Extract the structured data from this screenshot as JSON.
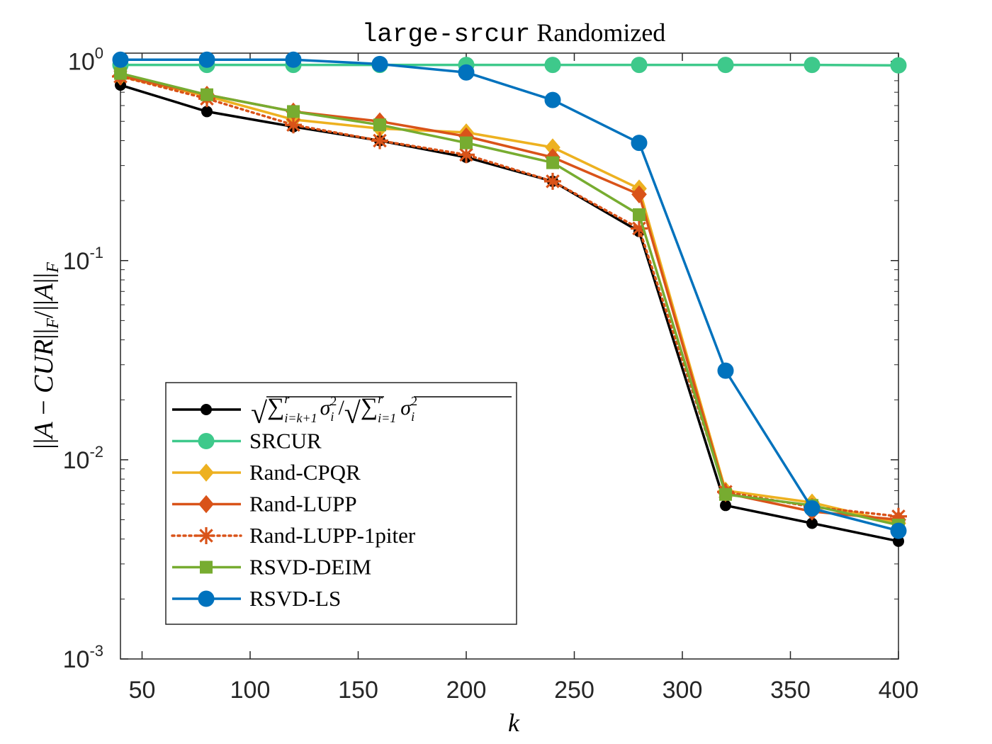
{
  "chart_data": {
    "type": "line",
    "title_code": "large-srcur",
    "title_text": " Randomized",
    "xlabel": "k",
    "ylabel": "||A − CUR||_F / ||A||_F",
    "ylabel_parts": {
      "bar1": "||",
      "A": "A",
      "minus": " − ",
      "CUR": "CUR",
      "bar2": "||",
      "sub1": "F",
      "slash": "/",
      "bar3": "||",
      "A2": "A",
      "bar4": "||",
      "sub2": "F"
    },
    "yscale": "log",
    "xlim": [
      40,
      400
    ],
    "ylim": [
      0.001,
      1.1
    ],
    "x_ticks": [
      50,
      100,
      150,
      200,
      250,
      300,
      350,
      400
    ],
    "x_tick_labels": [
      "50",
      "100",
      "150",
      "200",
      "250",
      "300",
      "350",
      "400"
    ],
    "y_ticks": [
      {
        "value": 1,
        "base": "10",
        "exp": "0"
      },
      {
        "value": 0.1,
        "base": "10",
        "exp": "-1"
      },
      {
        "value": 0.01,
        "base": "10",
        "exp": "-2"
      },
      {
        "value": 0.001,
        "base": "10",
        "exp": "-3"
      }
    ],
    "grid": false,
    "legend_position": "lower-left",
    "legend_first_label": {
      "sqrt": "√",
      "sum": "∑",
      "sup_r1": "r",
      "sub_1": "i=k+1",
      "sigma1": "σ",
      "sup_2a": "2",
      "sub_i1": "i",
      "slash": "/",
      "sup_r2": "r",
      "sub_2": "i=1",
      "sigma2": "σ",
      "sup_2b": "2",
      "sub_i2": "i"
    },
    "x": [
      40,
      80,
      120,
      160,
      200,
      240,
      280,
      320,
      360,
      400
    ],
    "series": [
      {
        "name": "SRCUR",
        "color": "#3ec98b",
        "marker": "circle",
        "dash": "solid",
        "values": [
          0.96,
          0.96,
          0.96,
          0.96,
          0.96,
          0.96,
          0.96,
          0.96,
          0.96,
          0.955
        ]
      },
      {
        "name": "Rand-CPQR",
        "color": "#edb120",
        "marker": "diamond",
        "dash": "solid",
        "values": [
          0.84,
          0.67,
          0.51,
          0.46,
          0.44,
          0.37,
          0.23,
          0.007,
          0.0061,
          0.0048
        ]
      },
      {
        "name": "Rand-LUPP",
        "color": "#d95319",
        "marker": "diamond",
        "dash": "solid",
        "values": [
          0.85,
          0.68,
          0.56,
          0.5,
          0.42,
          0.33,
          0.215,
          0.0068,
          0.0055,
          0.005
        ]
      },
      {
        "name": "Rand-LUPP-1piter",
        "color": "#d95319",
        "marker": "asterisk",
        "dash": "dotted",
        "values": [
          0.84,
          0.65,
          0.48,
          0.4,
          0.34,
          0.25,
          0.145,
          0.0069,
          0.0058,
          0.0052
        ]
      },
      {
        "name": "RSVD-DEIM",
        "color": "#77ac30",
        "marker": "square",
        "dash": "solid",
        "values": [
          0.87,
          0.68,
          0.56,
          0.48,
          0.39,
          0.31,
          0.17,
          0.0067,
          0.0059,
          0.0047
        ]
      },
      {
        "name": "RSVD-LS",
        "color": "#0072bd",
        "marker": "circle",
        "dash": "solid",
        "values": [
          1.02,
          1.02,
          1.02,
          0.97,
          0.88,
          0.64,
          0.39,
          0.028,
          0.0057,
          0.0044
        ]
      },
      {
        "name": "",
        "color": "#000000",
        "marker": "circle-small",
        "dash": "solid",
        "legend_formula": true,
        "values": [
          0.76,
          0.56,
          0.47,
          0.4,
          0.33,
          0.25,
          0.14,
          0.0059,
          0.0048,
          0.0039
        ]
      }
    ]
  }
}
